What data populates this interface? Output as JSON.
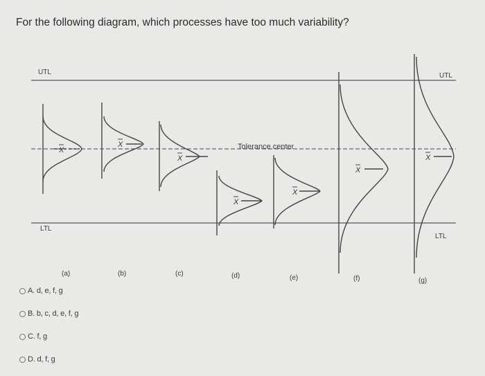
{
  "question": "For the following diagram, which processes have too much variability?",
  "diagram": {
    "utl_left": "UTL",
    "utl_right": "UTL",
    "ltl_left": "LTL",
    "ltl_right": "LTL",
    "tolerance_center": "Tolerance center",
    "mean_symbol": "X",
    "process_labels": [
      "(a)",
      "(b)",
      "(c)",
      "(d)",
      "(e)",
      "(f)",
      "(g)"
    ]
  },
  "options": [
    {
      "label": "A. d, e, f, g"
    },
    {
      "label": "B. b, c, d, e, f, g"
    },
    {
      "label": "C. f, g"
    },
    {
      "label": "D. d, f, g"
    }
  ]
}
